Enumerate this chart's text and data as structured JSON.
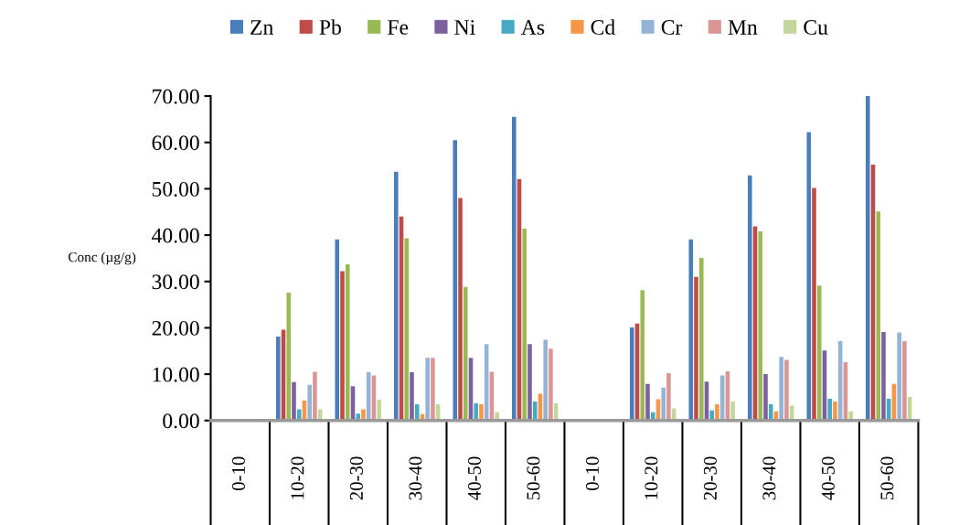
{
  "chart_data": {
    "type": "bar",
    "ylabel": "Conc (µg/g)",
    "categories": [
      "0-10",
      "10-20",
      "20-30",
      "30-40",
      "40-50",
      "50-60",
      "0-10",
      "10-20",
      "20-30",
      "30-40",
      "40-50",
      "50-60"
    ],
    "series": [
      {
        "name": "Zn",
        "color": "#4a7ebb",
        "values": [
          0,
          18.1,
          39.1,
          53.7,
          60.5,
          65.5,
          0,
          20.1,
          39.1,
          52.9,
          62.2,
          70.0
        ]
      },
      {
        "name": "Pb",
        "color": "#be4b48",
        "values": [
          0,
          19.6,
          32.2,
          44.0,
          48.0,
          52.1,
          0,
          20.9,
          31.0,
          41.9,
          50.2,
          55.2
        ]
      },
      {
        "name": "Fe",
        "color": "#98b954",
        "values": [
          0,
          27.6,
          33.7,
          39.3,
          28.8,
          41.4,
          0,
          28.1,
          35.1,
          40.8,
          29.1,
          45.1
        ]
      },
      {
        "name": "Ni",
        "color": "#7d60a0",
        "values": [
          0,
          8.3,
          7.4,
          10.4,
          13.5,
          16.5,
          0,
          7.9,
          8.4,
          10.0,
          15.1,
          19.1
        ]
      },
      {
        "name": "As",
        "color": "#46aac5",
        "values": [
          0,
          2.4,
          1.5,
          3.5,
          3.7,
          4.1,
          0,
          1.8,
          2.2,
          3.5,
          4.7,
          4.7
        ]
      },
      {
        "name": "Cd",
        "color": "#f79646",
        "values": [
          0,
          4.3,
          2.4,
          1.4,
          3.5,
          5.8,
          0,
          4.6,
          3.5,
          2.0,
          4.1,
          7.9
        ]
      },
      {
        "name": "Cr",
        "color": "#95b3d7",
        "values": [
          0,
          7.7,
          10.4,
          13.5,
          16.5,
          17.4,
          0,
          7.1,
          9.7,
          13.7,
          17.1,
          19.0
        ]
      },
      {
        "name": "Mn",
        "color": "#d99694",
        "values": [
          0,
          10.5,
          9.7,
          13.5,
          10.5,
          15.5,
          0,
          10.2,
          10.6,
          13.1,
          12.6,
          17.1
        ]
      },
      {
        "name": "Cu",
        "color": "#c3d69b",
        "values": [
          0,
          2.4,
          4.5,
          3.5,
          1.8,
          3.7,
          0,
          2.6,
          4.1,
          3.2,
          2.0,
          5.1
        ]
      }
    ],
    "ylim": [
      0,
      70
    ],
    "yticks": [
      {
        "value": 0,
        "label": "0.00"
      },
      {
        "value": 10,
        "label": "10.00"
      },
      {
        "value": 20,
        "label": "20.00"
      },
      {
        "value": 30,
        "label": "30.00"
      },
      {
        "value": 40,
        "label": "40.00"
      },
      {
        "value": 50,
        "label": "50.00"
      },
      {
        "value": 60,
        "label": "60.00"
      },
      {
        "value": 70,
        "label": "70.00"
      }
    ],
    "legend": "top",
    "grid": false
  }
}
